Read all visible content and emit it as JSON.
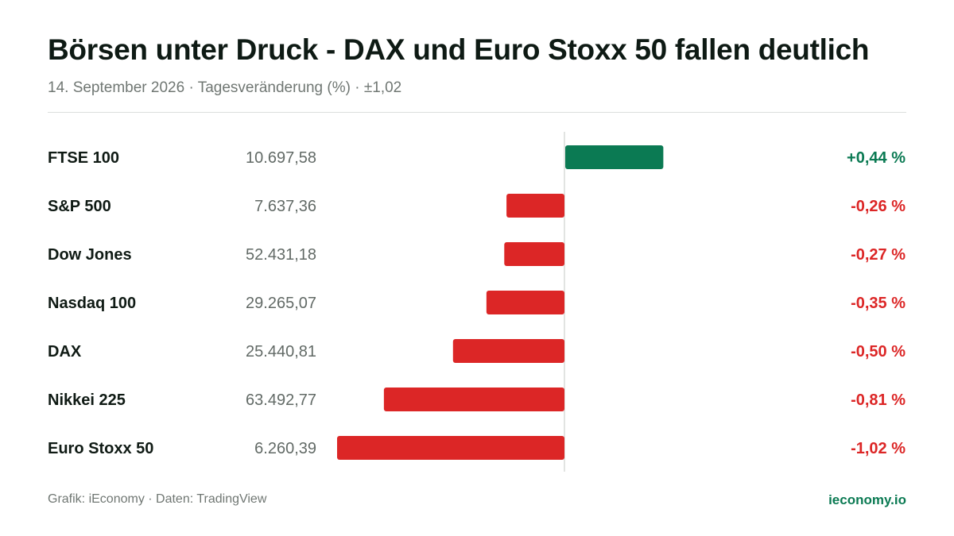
{
  "title": "Börsen unter Druck - DAX und Euro Stoxx 50 fallen deutlich",
  "subtitle": "14. September 2026 · Tagesveränderung (%) · ±1,02",
  "footer": {
    "source": "Grafik: iEconomy · Daten: TradingView",
    "brand": "ieconomy.io"
  },
  "colors": {
    "positive": "#0b7a53",
    "negative": "#dc2626",
    "axis": "#d8dbd9",
    "level": "#626a66",
    "name": "#0f1a14"
  },
  "chart_data": {
    "type": "bar",
    "orientation": "horizontal",
    "xlim": [
      -1.02,
      1.02
    ],
    "categories": [
      "FTSE 100",
      "S&P 500",
      "Dow Jones",
      "Nasdaq 100",
      "DAX",
      "Nikkei 225",
      "Euro Stoxx 50"
    ],
    "levels": [
      "10.697,58",
      "7.637,36",
      "52.431,18",
      "29.265,07",
      "25.440,81",
      "63.492,77",
      "6.260,39"
    ],
    "values": [
      0.44,
      -0.26,
      -0.27,
      -0.35,
      -0.5,
      -0.81,
      -1.02
    ],
    "value_labels": [
      "+0,44 %",
      "-0,26 %",
      "-0,27 %",
      "-0,35 %",
      "-0,50 %",
      "-0,81 %",
      "-1,02 %"
    ]
  }
}
